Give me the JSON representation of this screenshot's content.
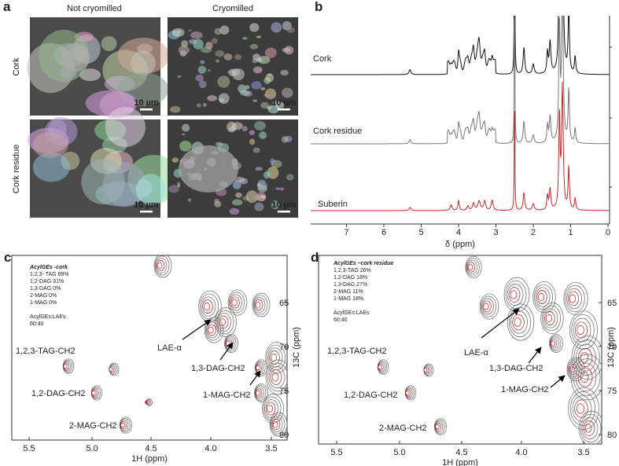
{
  "panels": [
    {
      "label": "a",
      "columns": [
        "Not cryomilled",
        "Cryomilled"
      ],
      "rows": [
        "Cork",
        "Cork residue"
      ],
      "scale_bars": [
        "10 µm",
        "10 µm",
        "10 µm",
        "10 µm"
      ]
    },
    {
      "label": "b",
      "traces": [
        "Cork",
        "Cork residue",
        "Suberin"
      ],
      "x_ticks": [
        "7",
        "6",
        "5",
        "4",
        "3",
        "2",
        "1",
        "0"
      ],
      "x_label": "δ (ppm)"
    },
    {
      "label": "c",
      "legend_title": "AcylGEs -cork",
      "legend": [
        "1,2,3- TAG 69%",
        "1,2-DAG 31%",
        "1,3-DAG 0%",
        "2-MAG 0%",
        "1-MAG 0%"
      ],
      "ratio_title": "AcylGEs:LAEs",
      "ratio": "60:40",
      "peaks": [
        "1,2,3-TAG-CH2",
        "1,2-DAG-CH2",
        "2-MAG-CH2",
        "LAE-α",
        "1,3-DAG-CH2",
        "1-MAG-CH2"
      ],
      "x_ticks": [
        "5.5",
        "5.0",
        "4.5",
        "4.0",
        "3.5"
      ],
      "y_ticks": [
        "65",
        "70",
        "75",
        "80"
      ],
      "x_label": "1H (ppm)",
      "y_label": "13C (ppm)"
    },
    {
      "label": "d",
      "legend_title": "AcylGEs –cork residue",
      "legend": [
        "1,2,3-TAG 26%",
        "1,2-DAG 18%",
        "1,3-DAG 27%",
        "2-MAG 11%",
        "1-MAG 18%"
      ],
      "ratio_title": "AcylGEs:LAEs",
      "ratio": "60:40",
      "peaks": [
        "1,2,3-TAG-CH2",
        "1,2-DAG-CH2",
        "2-MAG-CH2",
        "LAE-α",
        "1,3-DAG-CH2",
        "1-MAG-CH2"
      ],
      "x_ticks": [
        "5.5",
        "5.0",
        "4.5",
        "4.0",
        "3.5"
      ],
      "y_ticks": [
        "65",
        "70",
        "75",
        "80"
      ],
      "x_label": "1H (ppm)",
      "y_label": "13C (ppm)"
    }
  ]
}
